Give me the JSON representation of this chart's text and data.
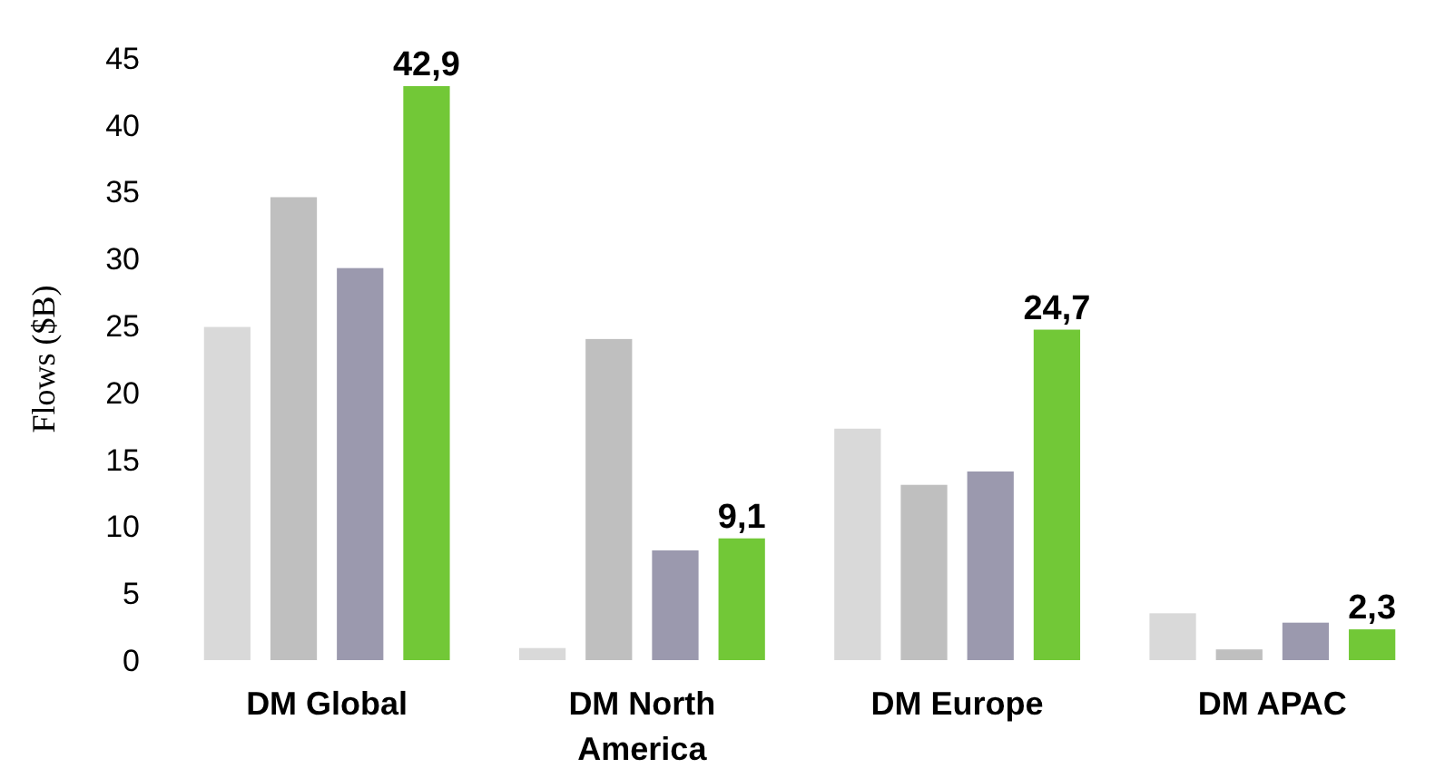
{
  "chart_data": {
    "type": "bar",
    "ylabel": "Flows ($B)",
    "categories": [
      "DM Global",
      "DM North America",
      "DM Europe",
      "DM APAC"
    ],
    "series": [
      {
        "color": "#d9d9d9",
        "values": [
          24.9,
          0.9,
          17.3,
          3.5
        ]
      },
      {
        "color": "#bfbfbf",
        "values": [
          34.6,
          24,
          13.1,
          0.8
        ]
      },
      {
        "color": "#9b99ae",
        "values": [
          29.3,
          8.2,
          14.1,
          2.8
        ]
      },
      {
        "color": "#72c837",
        "values": [
          42.9,
          9.1,
          24.7,
          2.3
        ],
        "value_labels": [
          "42,9",
          "9,1",
          "24,7",
          "2,3"
        ]
      }
    ],
    "ylim": [
      0,
      45
    ],
    "yticks": [
      0,
      5,
      10,
      15,
      20,
      25,
      30,
      35,
      40,
      45
    ],
    "grid": false
  }
}
